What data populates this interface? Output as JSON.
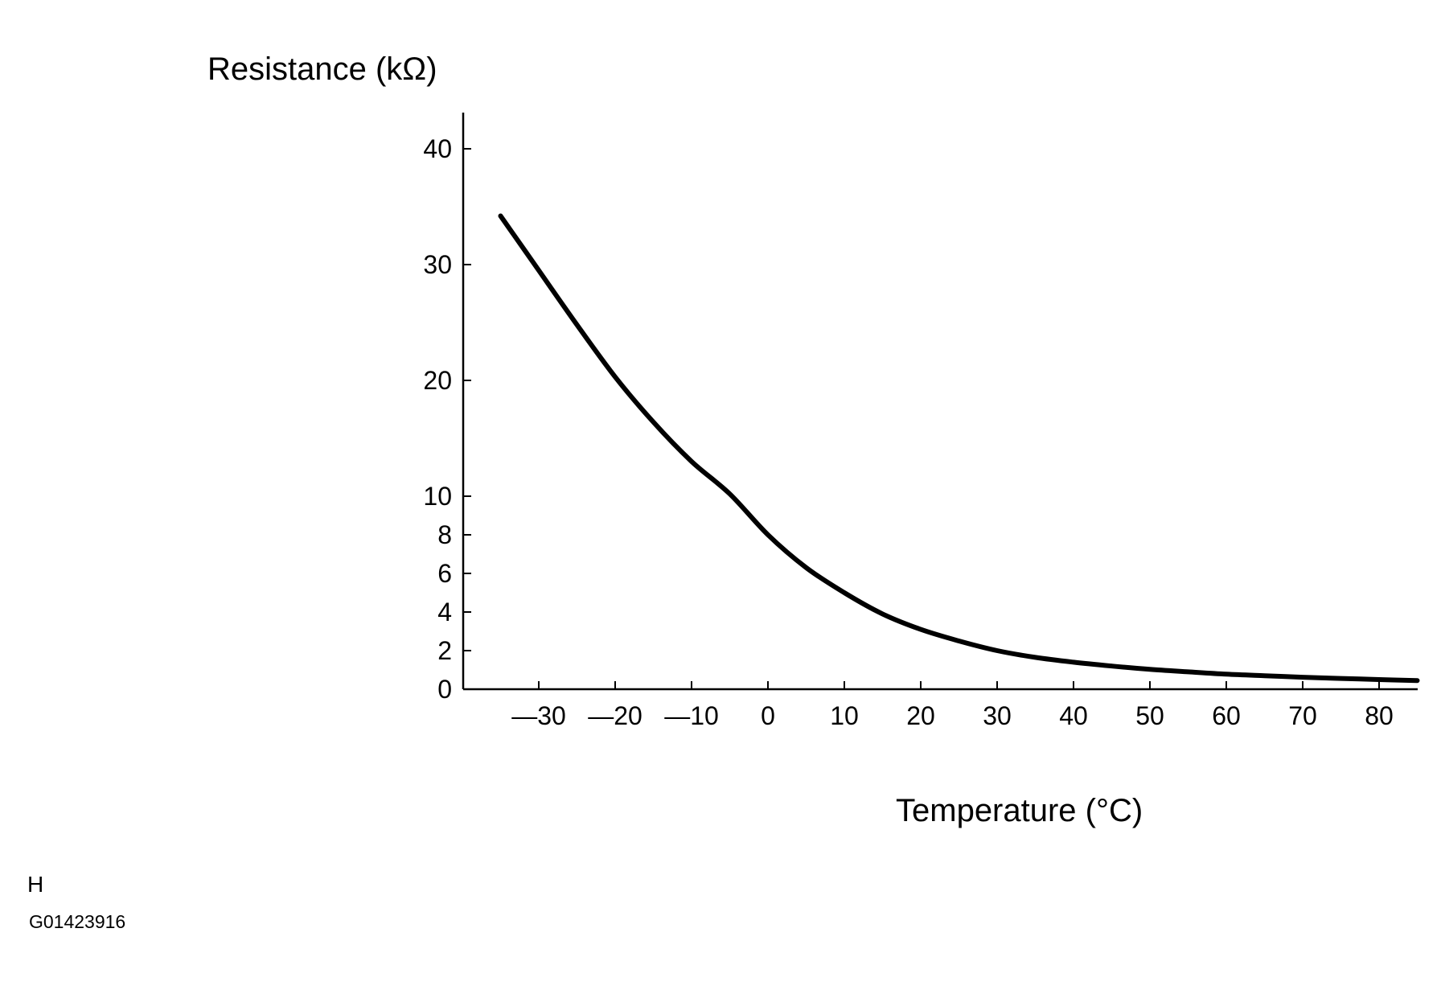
{
  "chart_data": {
    "type": "line",
    "xlabel": "Temperature (°C)",
    "ylabel": "Resistance (kΩ)",
    "xlim": [
      -40,
      85
    ],
    "ylim": [
      0,
      42
    ],
    "x_ticks": [
      -30,
      -20,
      -10,
      0,
      10,
      20,
      30,
      40,
      50,
      60,
      70,
      80
    ],
    "x_tick_labels": [
      "—30",
      "—20",
      "—10",
      "0",
      "10",
      "20",
      "30",
      "40",
      "50",
      "60",
      "70",
      "80"
    ],
    "y_ticks": [
      0,
      2,
      4,
      6,
      8,
      10,
      20,
      30,
      40
    ],
    "y_tick_labels": [
      "0",
      "2",
      "4",
      "6",
      "8",
      "10",
      "20",
      "30",
      "40"
    ],
    "grid": false,
    "series": [
      {
        "x": [
          -35,
          -30,
          -25,
          -20,
          -15,
          -10,
          -5,
          0,
          5,
          10,
          15,
          20,
          25,
          30,
          35,
          40,
          45,
          50,
          55,
          60,
          65,
          70,
          75,
          80,
          85
        ],
        "y": [
          34.2,
          29.5,
          24.8,
          20.3,
          16.4,
          13.0,
          10.2,
          8.0,
          6.3,
          5.0,
          3.9,
          3.1,
          2.5,
          2.0,
          1.65,
          1.4,
          1.2,
          1.03,
          0.9,
          0.78,
          0.7,
          0.62,
          0.56,
          0.5,
          0.45
        ]
      }
    ]
  },
  "labels": {
    "corner_letter": "H",
    "figure_id": "G01423916"
  }
}
